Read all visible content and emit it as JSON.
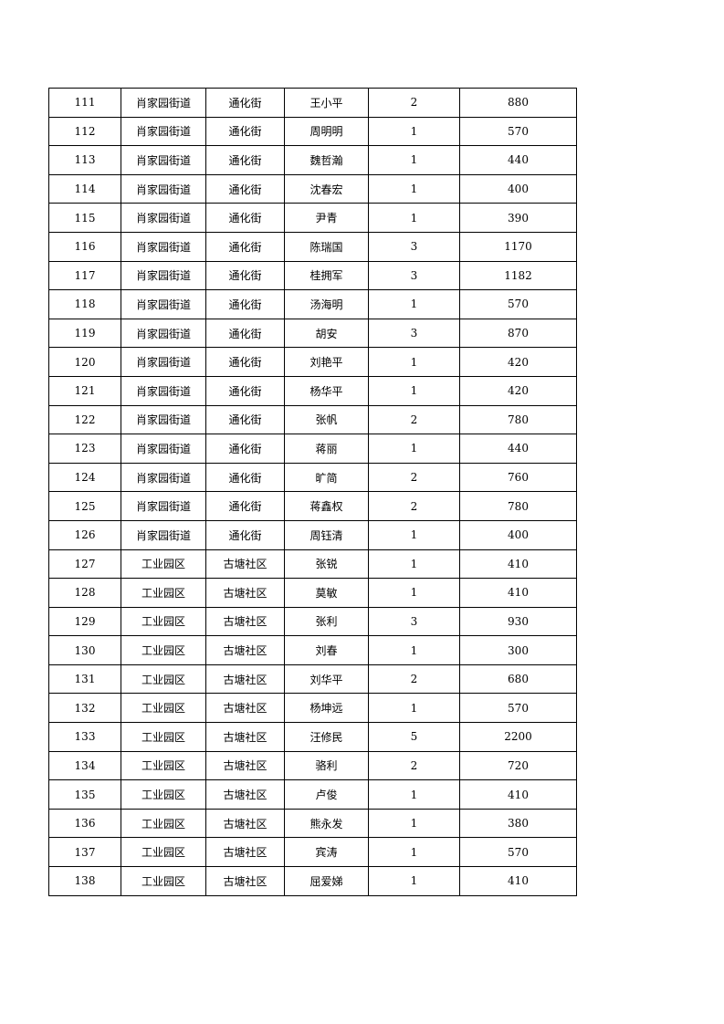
{
  "rows": [
    [
      "111",
      "肖家园街道",
      "通化街",
      "王小平",
      "2",
      "880"
    ],
    [
      "112",
      "肖家园街道",
      "通化街",
      "周明明",
      "1",
      "570"
    ],
    [
      "113",
      "肖家园街道",
      "通化街",
      "魏哲瀚",
      "1",
      "440"
    ],
    [
      "114",
      "肖家园街道",
      "通化街",
      "沈春宏",
      "1",
      "400"
    ],
    [
      "115",
      "肖家园街道",
      "通化街",
      "尹青",
      "1",
      "390"
    ],
    [
      "116",
      "肖家园街道",
      "通化街",
      "陈瑞国",
      "3",
      "1170"
    ],
    [
      "117",
      "肖家园街道",
      "通化街",
      "桂拥军",
      "3",
      "1182"
    ],
    [
      "118",
      "肖家园街道",
      "通化街",
      "汤海明",
      "1",
      "570"
    ],
    [
      "119",
      "肖家园街道",
      "通化街",
      "胡安",
      "3",
      "870"
    ],
    [
      "120",
      "肖家园街道",
      "通化街",
      "刘艳平",
      "1",
      "420"
    ],
    [
      "121",
      "肖家园街道",
      "通化街",
      "杨华平",
      "1",
      "420"
    ],
    [
      "122",
      "肖家园街道",
      "通化街",
      "张帆",
      "2",
      "780"
    ],
    [
      "123",
      "肖家园街道",
      "通化街",
      "蒋丽",
      "1",
      "440"
    ],
    [
      "124",
      "肖家园街道",
      "通化街",
      "旷简",
      "2",
      "760"
    ],
    [
      "125",
      "肖家园街道",
      "通化街",
      "蒋鑫权",
      "2",
      "780"
    ],
    [
      "126",
      "肖家园街道",
      "通化街",
      "周钰清",
      "1",
      "400"
    ],
    [
      "127",
      "工业园区",
      "古塘社区",
      "张锐",
      "1",
      "410"
    ],
    [
      "128",
      "工业园区",
      "古塘社区",
      "莫敏",
      "1",
      "410"
    ],
    [
      "129",
      "工业园区",
      "古塘社区",
      "张利",
      "3",
      "930"
    ],
    [
      "130",
      "工业园区",
      "古塘社区",
      "刘春",
      "1",
      "300"
    ],
    [
      "131",
      "工业园区",
      "古塘社区",
      "刘华平",
      "2",
      "680"
    ],
    [
      "132",
      "工业园区",
      "古塘社区",
      "杨坤远",
      "1",
      "570"
    ],
    [
      "133",
      "工业园区",
      "古塘社区",
      "汪修民",
      "5",
      "2200"
    ],
    [
      "134",
      "工业园区",
      "古塘社区",
      "骆利",
      "2",
      "720"
    ],
    [
      "135",
      "工业园区",
      "古塘社区",
      "卢俊",
      "1",
      "410"
    ],
    [
      "136",
      "工业园区",
      "古塘社区",
      "熊永发",
      "1",
      "380"
    ],
    [
      "137",
      "工业园区",
      "古塘社区",
      "宾涛",
      "1",
      "570"
    ],
    [
      "138",
      "工业园区",
      "古塘社区",
      "屈爱娣",
      "1",
      "410"
    ]
  ]
}
